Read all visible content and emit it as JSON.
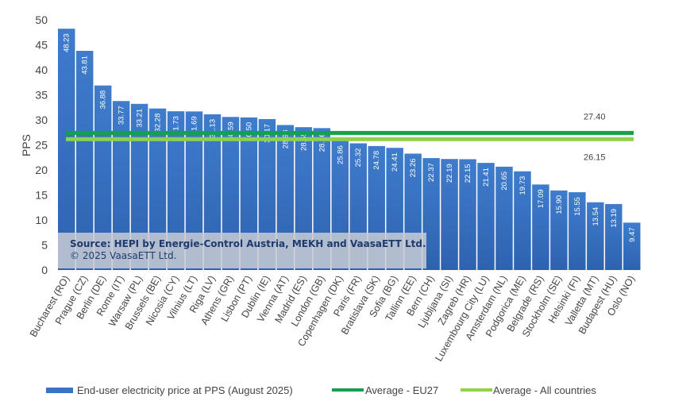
{
  "chart_data": {
    "type": "bar",
    "ylabel": "PPS",
    "ylim": [
      0,
      50
    ],
    "yticks": [
      0,
      5,
      10,
      15,
      20,
      25,
      30,
      35,
      40,
      45,
      50
    ],
    "grid": false,
    "legend_position": "bottom",
    "categories": [
      "Bucharest (RO)",
      "Prague (CZ)",
      "Berlin (DE)",
      "Rome (IT)",
      "Warsaw (PL)",
      "Brussels (BE)",
      "Nicosia (CY)",
      "Vilnius (LT)",
      "Riga (LV)",
      "Athens (GR)",
      "Lisbon (PT)",
      "Dublin (IE)",
      "Vienna (AT)",
      "Madrid (ES)",
      "London (GB)",
      "Copenhagen (DK)",
      "Paris (FR)",
      "Bratislava (SK)",
      "Sofia (BG)",
      "Tallinn (EE)",
      "Bern (CH)",
      "Ljubljana (SI)",
      "Zagreb (HR)",
      "Luxembourg City (LU)",
      "Amsterdam (NL)",
      "Podgorica (ME)",
      "Belgrade (RS)",
      "Stockholm (SE)",
      "Helsinki (FI)",
      "Valletta (MT)",
      "Budapest (HU)",
      "Oslo (NO)"
    ],
    "series": [
      {
        "name": "End-user electricity price at PPS (August 2025)",
        "type": "bar",
        "color": "#3a74c4",
        "values": [
          48.23,
          43.81,
          36.88,
          33.77,
          33.21,
          32.28,
          31.73,
          31.69,
          31.13,
          30.59,
          30.5,
          30.17,
          28.98,
          28.55,
          28.36,
          25.86,
          25.32,
          24.78,
          24.41,
          23.26,
          22.37,
          22.19,
          22.15,
          21.41,
          20.65,
          19.73,
          17.09,
          15.9,
          15.55,
          13.54,
          13.19,
          9.47
        ]
      },
      {
        "name": "Average - EU27",
        "type": "line",
        "color": "#13a24a",
        "value": 27.4,
        "label": "27.40"
      },
      {
        "name": "Average - All countries",
        "type": "line",
        "color": "#8fd14f",
        "value": 26.15,
        "label": "26.15"
      }
    ],
    "annotation": {
      "source": "Source: HEPI by Energie-Control Austria, MEKH and VaasaETT Ltd.",
      "copyright": "© 2025 VaasaETT Ltd."
    }
  }
}
